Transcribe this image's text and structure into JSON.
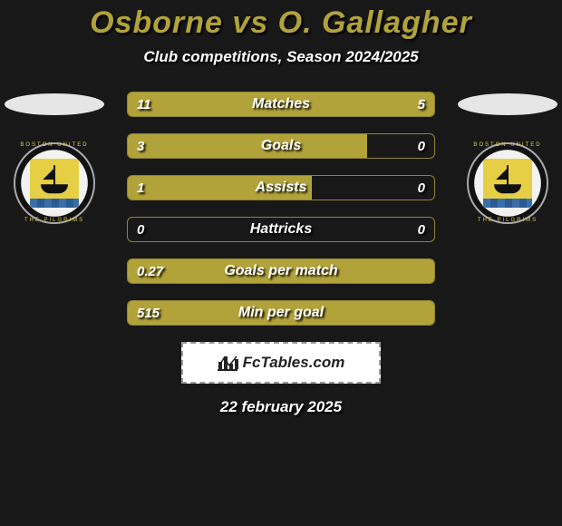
{
  "title_color": "#b1a33a",
  "accent_color": "#b1a33a",
  "border_color": "#8f8430",
  "bg_color": "#181818",
  "title": "Osborne vs O. Gallagher",
  "subtitle": "Club competitions, Season 2024/2025",
  "crest_top_text": "BOSTON UNITED",
  "crest_bottom_text": "THE PILGRIMS",
  "bars": [
    {
      "label": "Matches",
      "left_val": "11",
      "right_val": "5",
      "left_pct": 68,
      "right_pct": 32
    },
    {
      "label": "Goals",
      "left_val": "3",
      "right_val": "0",
      "left_pct": 78,
      "right_pct": 0
    },
    {
      "label": "Assists",
      "left_val": "1",
      "right_val": "0",
      "left_pct": 60,
      "right_pct": 0
    },
    {
      "label": "Hattricks",
      "left_val": "0",
      "right_val": "0",
      "left_pct": 0,
      "right_pct": 0
    },
    {
      "label": "Goals per match",
      "left_val": "0.27",
      "right_val": "",
      "left_pct": 100,
      "right_pct": 0
    },
    {
      "label": "Min per goal",
      "left_val": "515",
      "right_val": "",
      "left_pct": 100,
      "right_pct": 0
    }
  ],
  "brand_text": "FcTables.com",
  "footer_date": "22 february 2025"
}
